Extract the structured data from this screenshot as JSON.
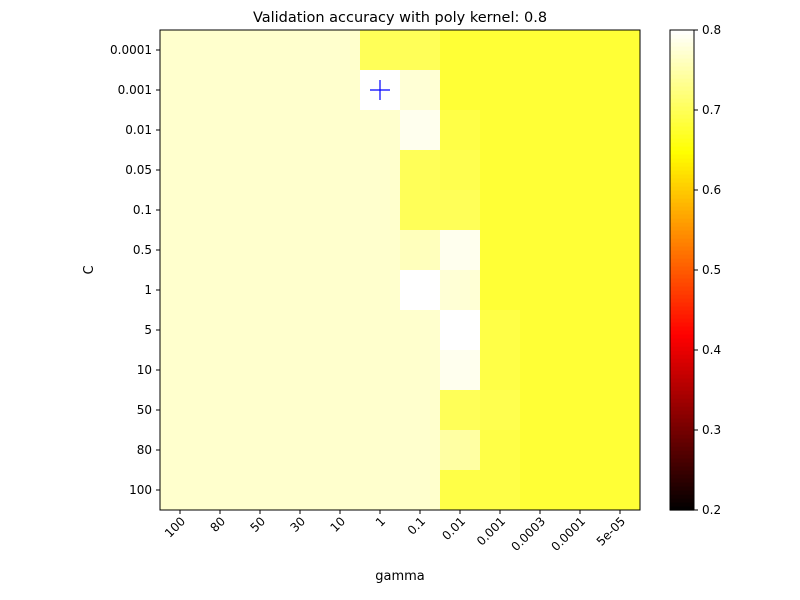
{
  "chart_data": {
    "type": "heatmap",
    "title": "Validation accuracy with poly kernel: 0.8",
    "xlabel": "gamma",
    "ylabel": "C",
    "x_categories": [
      "100",
      "80",
      "50",
      "30",
      "10",
      "1",
      "0.1",
      "0.01",
      "0.001",
      "0.0003",
      "0.0001",
      "5e-05"
    ],
    "y_categories": [
      "0.0001",
      "0.001",
      "0.01",
      "0.05",
      "0.1",
      "0.5",
      "1",
      "5",
      "10",
      "50",
      "80",
      "100"
    ],
    "values": [
      [
        0.77,
        0.77,
        0.77,
        0.77,
        0.77,
        0.7,
        0.7,
        0.68,
        0.68,
        0.68,
        0.68,
        0.68
      ],
      [
        0.77,
        0.77,
        0.77,
        0.77,
        0.77,
        0.8,
        0.775,
        0.68,
        0.68,
        0.68,
        0.68,
        0.68
      ],
      [
        0.77,
        0.77,
        0.77,
        0.77,
        0.77,
        0.77,
        0.79,
        0.69,
        0.68,
        0.68,
        0.68,
        0.68
      ],
      [
        0.77,
        0.77,
        0.77,
        0.77,
        0.77,
        0.77,
        0.7,
        0.695,
        0.68,
        0.68,
        0.68,
        0.68
      ],
      [
        0.77,
        0.77,
        0.77,
        0.77,
        0.77,
        0.77,
        0.7,
        0.7,
        0.68,
        0.68,
        0.68,
        0.68
      ],
      [
        0.77,
        0.77,
        0.77,
        0.77,
        0.77,
        0.77,
        0.76,
        0.79,
        0.68,
        0.68,
        0.68,
        0.68
      ],
      [
        0.77,
        0.77,
        0.77,
        0.77,
        0.77,
        0.77,
        0.8,
        0.775,
        0.68,
        0.68,
        0.68,
        0.68
      ],
      [
        0.77,
        0.77,
        0.77,
        0.77,
        0.77,
        0.77,
        0.77,
        0.8,
        0.69,
        0.68,
        0.68,
        0.68
      ],
      [
        0.77,
        0.77,
        0.77,
        0.77,
        0.77,
        0.77,
        0.77,
        0.79,
        0.69,
        0.68,
        0.68,
        0.68
      ],
      [
        0.77,
        0.77,
        0.77,
        0.77,
        0.77,
        0.77,
        0.77,
        0.7,
        0.695,
        0.68,
        0.68,
        0.68
      ],
      [
        0.77,
        0.77,
        0.77,
        0.77,
        0.77,
        0.77,
        0.77,
        0.745,
        0.69,
        0.68,
        0.68,
        0.68
      ],
      [
        0.77,
        0.77,
        0.77,
        0.77,
        0.77,
        0.77,
        0.77,
        0.69,
        0.69,
        0.68,
        0.68,
        0.68
      ]
    ],
    "best_marker": {
      "x": "1",
      "y": "0.001",
      "symbol": "+",
      "color": "#0000ff"
    },
    "colormap": "hot",
    "color_range": [
      0.2,
      0.8
    ],
    "colorbar_ticks": [
      "0.2",
      "0.3",
      "0.4",
      "0.5",
      "0.6",
      "0.7",
      "0.8"
    ],
    "grid": false,
    "legend": "none"
  }
}
